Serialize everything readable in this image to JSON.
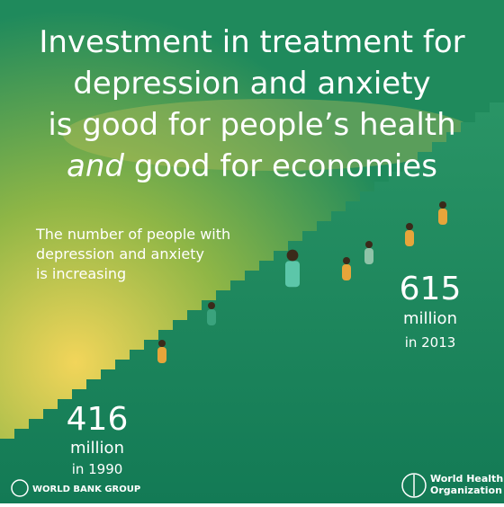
{
  "title": {
    "lines": [
      "Investment in treatment for",
      "depression and anxiety",
      "is good for people’s health"
    ],
    "emphasis": "and",
    "last_line": "good for economies"
  },
  "subtitle": [
    "The number of people with",
    "depression and anxiety",
    "is increasing"
  ],
  "stats": [
    {
      "number": 416,
      "unit": "million",
      "year": "in 1990"
    },
    {
      "number": 615,
      "unit": "million",
      "year": "in 2013"
    }
  ],
  "logos": {
    "left": "WORLD BANK GROUP",
    "right": [
      "World Health",
      "Organization"
    ]
  }
}
